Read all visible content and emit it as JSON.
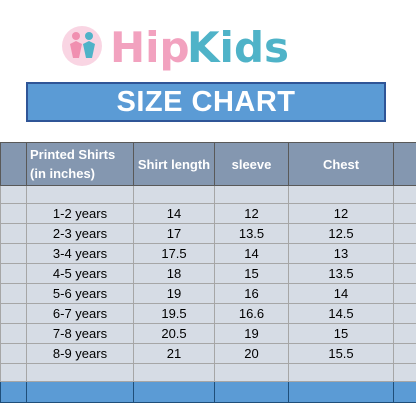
{
  "brand": {
    "name": "HipKids",
    "colors": {
      "pink": "#f2a2bf",
      "blue": "#4fb3c8",
      "figure": "#f08fb0"
    }
  },
  "title": "SIZE CHART",
  "table": {
    "headers": [
      "Printed Shirts (in inches)",
      "Shirt  length",
      "sleeve",
      "Chest"
    ],
    "rows": [
      {
        "age": "1-2 years",
        "length": "14",
        "sleeve": "12",
        "chest": "12"
      },
      {
        "age": "2-3 years",
        "length": "17",
        "sleeve": "13.5",
        "chest": "12.5"
      },
      {
        "age": "3-4 years",
        "length": "17.5",
        "sleeve": "14",
        "chest": "13"
      },
      {
        "age": "4-5 years",
        "length": "18",
        "sleeve": "15",
        "chest": "13.5"
      },
      {
        "age": "5-6 years",
        "length": "19",
        "sleeve": "16",
        "chest": "14"
      },
      {
        "age": "6-7 years",
        "length": "19.5",
        "sleeve": "16.6",
        "chest": "14.5"
      },
      {
        "age": "7-8 years",
        "length": "20.5",
        "sleeve": "19",
        "chest": "15"
      },
      {
        "age": "8-9 years",
        "length": "21",
        "sleeve": "20",
        "chest": "15.5"
      }
    ]
  },
  "colors": {
    "title_band": "#5b9bd5",
    "header_row": "#8497b0",
    "body_cells": "#d6dce5",
    "footer_row": "#5b9bd5"
  }
}
